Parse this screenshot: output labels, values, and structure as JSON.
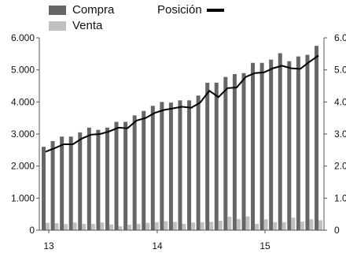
{
  "chart_data": {
    "type": "bar",
    "legend": {
      "compra": "Compra",
      "venta": "Venta",
      "posicion": "Posición"
    },
    "colors": {
      "compra": "#666666",
      "venta": "#c0c0c0",
      "posicion": "#000000"
    },
    "y_ticks_left": [
      "6.000",
      "5.000",
      "4.000",
      "3.000",
      "2.000",
      "1.000",
      "0"
    ],
    "y_ticks_right": [
      "6.0",
      "5.0",
      "4.0",
      "3.0",
      "2.0",
      "1.0",
      "0"
    ],
    "x_ticks": [
      "13",
      "14",
      "15"
    ],
    "ylim": [
      0,
      6000
    ],
    "grid": false,
    "series": [
      {
        "name": "Compra",
        "values": [
          2600,
          2780,
          2920,
          2920,
          3050,
          3200,
          3130,
          3200,
          3380,
          3380,
          3580,
          3720,
          3880,
          4000,
          3980,
          4050,
          4050,
          4200,
          4600,
          4600,
          4780,
          4870,
          4900,
          5220,
          5220,
          5320,
          5520,
          5270,
          5420,
          5470,
          5750
        ]
      },
      {
        "name": "Venta",
        "values": [
          230,
          220,
          190,
          240,
          200,
          200,
          240,
          180,
          120,
          170,
          200,
          230,
          250,
          280,
          260,
          200,
          240,
          250,
          260,
          300,
          420,
          350,
          430,
          200,
          340,
          250,
          250,
          390,
          270,
          340,
          310
        ]
      },
      {
        "name": "Posición",
        "values": [
          2450,
          2560,
          2680,
          2680,
          2860,
          2980,
          3000,
          3080,
          3200,
          3180,
          3420,
          3500,
          3660,
          3750,
          3800,
          3850,
          3820,
          3980,
          4350,
          4150,
          4430,
          4450,
          4780,
          4900,
          4920,
          5050,
          5130,
          5050,
          5030,
          5250,
          5450
        ]
      }
    ]
  }
}
